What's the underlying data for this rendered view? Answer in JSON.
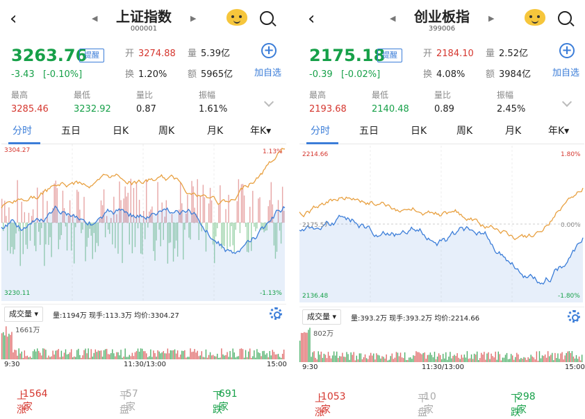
{
  "screens": [
    {
      "title": "上证指数",
      "code": "000001",
      "price": "3263.76",
      "price_color": "#16a048",
      "change": "-3.43",
      "change_pct": "[-0.10%]",
      "remind": "提醒",
      "open_k": "开",
      "open": "3274.88",
      "vol_k": "量",
      "vol": "5.39亿",
      "turn_k": "换",
      "turn": "1.20%",
      "amt_k": "额",
      "amt": "5965亿",
      "add_label": "加自选",
      "high_k": "最高",
      "high": "3285.46",
      "low_k": "最低",
      "low": "3232.92",
      "ratio_k": "量比",
      "ratio": "0.87",
      "amp_k": "振幅",
      "amp": "1.61%",
      "tabs": [
        "分时",
        "五日",
        "日K",
        "周K",
        "月K",
        "年K▾"
      ],
      "chart_top": "3304.27",
      "chart_bottom": "3230.11",
      "pct_top": "1.13%",
      "pct_bottom": "-1.13%",
      "mid_label": "",
      "vol_select": "成交量 ▾",
      "vol_info": "量:1194万  现手:113.3万  均价:3304.27",
      "vol_max": "1661万",
      "t_start": "9:30",
      "t_mid": "11:30/13:00",
      "t_end": "15:00",
      "up": "上涨",
      "up_n": "1564家",
      "flat": "平盘",
      "flat_n": "57家",
      "down": "下跌",
      "down_n": "691家"
    },
    {
      "title": "创业板指",
      "code": "399006",
      "price": "2175.18",
      "price_color": "#16a048",
      "change": "-0.39",
      "change_pct": "[-0.02%]",
      "remind": "提醒",
      "open_k": "开",
      "open": "2184.10",
      "vol_k": "量",
      "vol": "2.52亿",
      "turn_k": "换",
      "turn": "4.08%",
      "amt_k": "额",
      "amt": "3984亿",
      "add_label": "加自选",
      "high_k": "最高",
      "high": "2193.68",
      "low_k": "最低",
      "low": "2140.48",
      "ratio_k": "量比",
      "ratio": "0.89",
      "amp_k": "振幅",
      "amp": "2.45%",
      "tabs": [
        "分时",
        "五日",
        "日K",
        "周K",
        "月K",
        "年K▾"
      ],
      "chart_top": "2214.66",
      "chart_bottom": "2136.48",
      "pct_top": "1.80%",
      "pct_bottom": "-1.80%",
      "mid_label": "2175.57",
      "pct_mid": "0.00%",
      "vol_select": "成交量 ▾",
      "vol_info": "量:393.2万  现手:393.2万  均价:2214.66",
      "vol_max": "802万",
      "t_start": "9:30",
      "t_mid": "11:30/13:00",
      "t_end": "15:00",
      "up": "上涨",
      "up_n": "1053家",
      "flat": "平盘",
      "flat_n": "10家",
      "down": "下跌",
      "down_n": "298家"
    }
  ],
  "colors": {
    "up": "#d5362e",
    "down": "#16a048",
    "accent": "#3b7dd8",
    "price_line": "#3b7dd8",
    "avg_line": "#e8a040"
  }
}
